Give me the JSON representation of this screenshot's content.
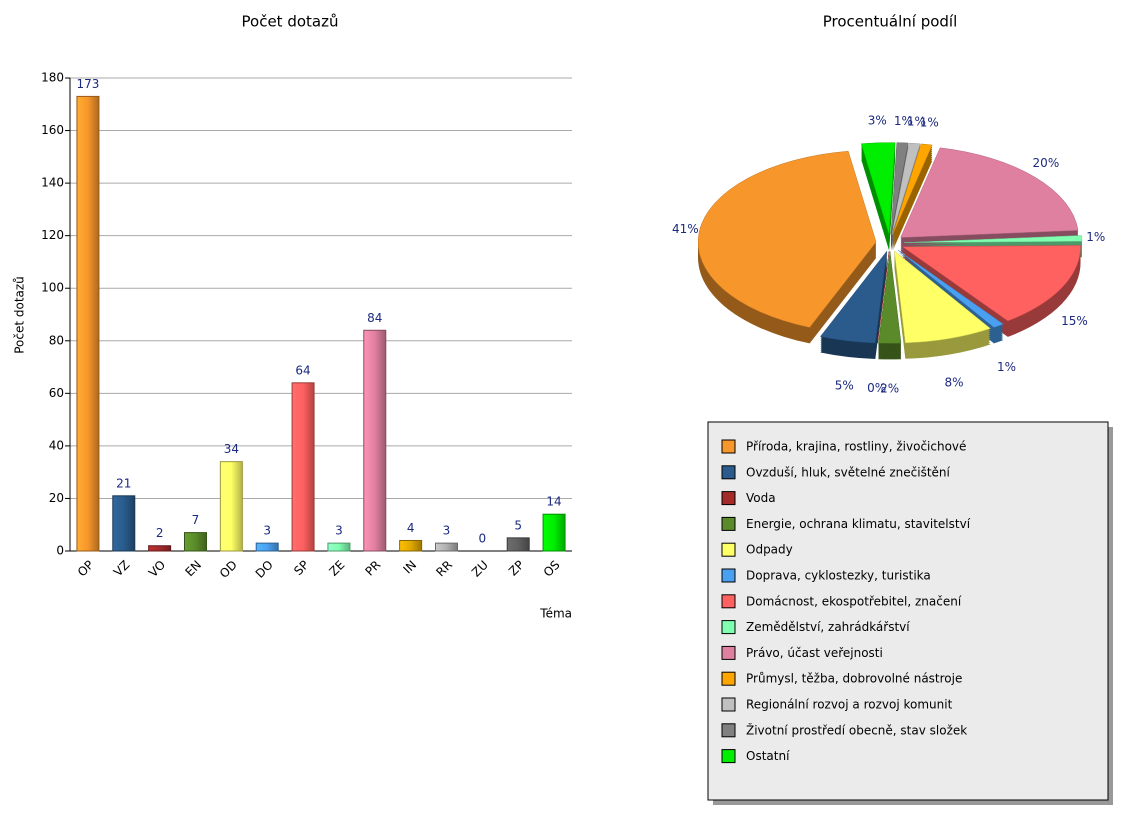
{
  "chart_data": [
    {
      "type": "bar",
      "title": "Počet dotazů",
      "y_label": "Počet dotazů",
      "x_label": "Téma",
      "categories": [
        "OP",
        "VZ",
        "VO",
        "EN",
        "OD",
        "DO",
        "SP",
        "ZE",
        "PR",
        "IN",
        "RR",
        "ZU",
        "ZP",
        "OS"
      ],
      "values": [
        173,
        21,
        2,
        7,
        34,
        3,
        64,
        3,
        84,
        4,
        3,
        0,
        5,
        14
      ],
      "colors": [
        "#f7962b",
        "#2a5b8c",
        "#a52a2a",
        "#5a8a2a",
        "#ffff66",
        "#4aa0f0",
        "#ff6060",
        "#80ffb0",
        "#e080a0",
        "#e0a800",
        "#b0b0b0",
        "#707070",
        "#606060",
        "#00ee00"
      ],
      "ylim": [
        0,
        180
      ],
      "yticks": [
        0,
        20,
        40,
        60,
        80,
        100,
        120,
        140,
        160,
        180
      ],
      "grid": true
    },
    {
      "type": "pie",
      "title": "Procentuální podíl",
      "categories": [
        "Příroda, krajina, rostliny, živočichové",
        "Ovzduší, hluk, světelné znečištění",
        "Voda",
        "Energie, ochrana klimatu, stavitelství",
        "Odpady",
        "Doprava, cyklostezky, turistika",
        "Domácnost, ekospotřebitel, značení",
        "Zemědělství, zahrádkářství",
        "Právo, účast veřejnosti",
        "Průmysl, těžba, dobrovolné nástroje",
        "Regionální rozvoj a rozvoj komunit",
        "Životní prostředí obecně, stav složek",
        "Ostatní"
      ],
      "values": [
        41,
        5,
        0,
        2,
        8,
        1,
        15,
        1,
        20,
        1,
        1,
        1,
        3
      ],
      "value_labels": [
        "41%",
        "5%",
        "0%",
        "2%",
        "8%",
        "1%",
        "15%",
        "1%",
        "20%",
        "1%",
        "1%",
        "1%",
        "3%"
      ],
      "colors": [
        "#f7962b",
        "#2a5b8c",
        "#a52a2a",
        "#5a8a2a",
        "#ffff66",
        "#4aa0f0",
        "#ff6060",
        "#80ffb0",
        "#e080a0",
        "#ffa500",
        "#c0c0c0",
        "#808080",
        "#00ee00"
      ],
      "legend": "bottom"
    }
  ]
}
